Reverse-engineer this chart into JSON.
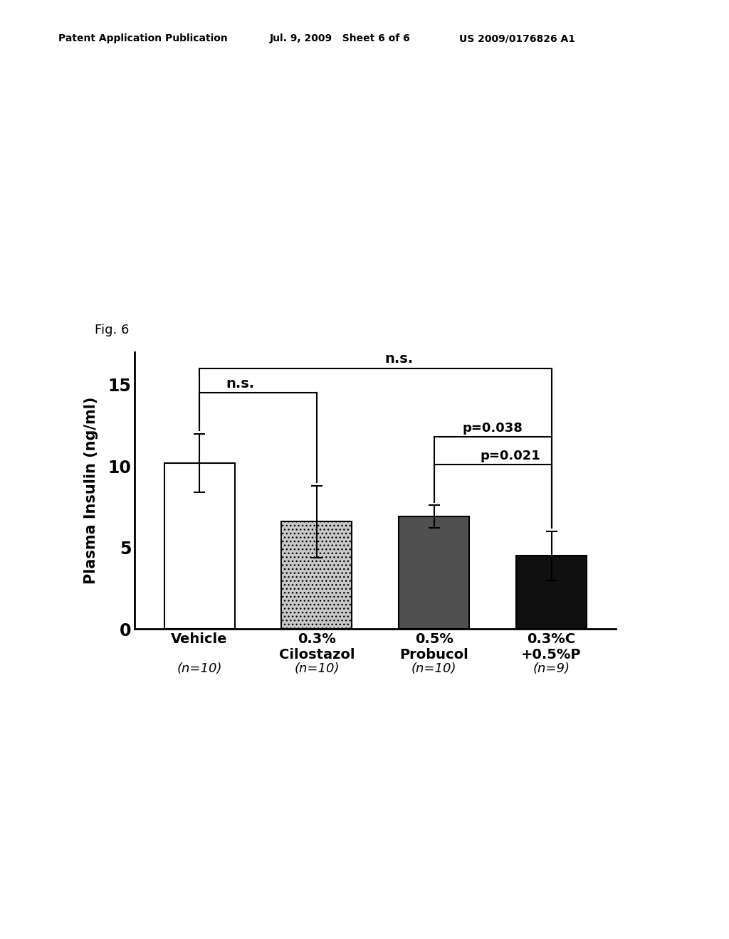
{
  "categories": [
    "Vehicle",
    "0.3%\nCilostazol",
    "0.5%\nProbucol",
    "0.3%C\n+0.5%P"
  ],
  "n_labels": [
    "(n=10)",
    "(n=10)",
    "(n=10)",
    "(n=9)"
  ],
  "values": [
    10.2,
    6.6,
    6.9,
    4.5
  ],
  "errors": [
    1.8,
    2.2,
    0.7,
    1.5
  ],
  "bar_colors": [
    "white",
    "#c8c8c8",
    "#505050",
    "#101010"
  ],
  "bar_edgecolor": "black",
  "ylabel": "Plasma Insulin (ng/ml)",
  "ylim": [
    0,
    17
  ],
  "yticks": [
    0,
    5,
    10,
    15
  ],
  "fig_label": "Fig. 6",
  "header_left": "Patent Application Publication",
  "header_mid": "Jul. 9, 2009   Sheet 6 of 6",
  "header_right": "US 2009/0176826 A1",
  "background_color": "white",
  "bar_width": 0.6
}
